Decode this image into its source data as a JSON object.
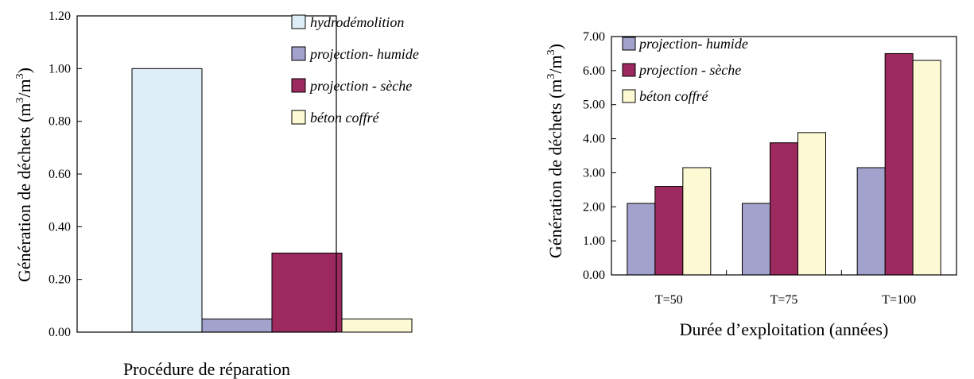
{
  "colors": {
    "hydrodemolition": "#ddeef6",
    "projection_humide": "#a3a2cc",
    "projection_seche": "#9c2a5e",
    "beton_coffre": "#fdfad3",
    "axis": "#000000"
  },
  "chart_data": [
    {
      "type": "bar",
      "title": "",
      "xlabel": "Procédure de réparation",
      "ylabel_main": "Génération de déchets (m",
      "ylabel_sup1": "3",
      "ylabel_mid": "/m",
      "ylabel_sup2": "3",
      "ylabel_end": ")",
      "ylim": [
        0,
        1.2
      ],
      "yticks": [
        "0.00",
        "0.20",
        "0.40",
        "0.60",
        "0.80",
        "1.00",
        "1.20"
      ],
      "legend_position": "top-right",
      "series": [
        {
          "name": "hydrodémolition",
          "values": [
            1.0
          ],
          "color_key": "hydrodemolition"
        },
        {
          "name": "projection- humide",
          "values": [
            0.05
          ],
          "color_key": "projection_humide"
        },
        {
          "name": "projection - sèche",
          "values": [
            0.3
          ],
          "color_key": "projection_seche"
        },
        {
          "name": "béton coffré",
          "values": [
            0.05
          ],
          "color_key": "beton_coffre"
        }
      ]
    },
    {
      "type": "bar",
      "title": "",
      "xlabel": "Durée d’exploitation (années)",
      "ylabel_main": "Génération de déchets (m",
      "ylabel_sup1": "3",
      "ylabel_mid": "/m",
      "ylabel_sup2": "3",
      "ylabel_end": ")",
      "ylim": [
        0,
        7
      ],
      "yticks": [
        "0.00",
        "1.00",
        "2.00",
        "3.00",
        "4.00",
        "5.00",
        "6.00",
        "7.00"
      ],
      "categories": [
        "T=50",
        "T=75",
        "T=100"
      ],
      "legend_position": "top-left",
      "series": [
        {
          "name": "projection- humide",
          "values": [
            2.1,
            2.1,
            3.15
          ],
          "color_key": "projection_humide"
        },
        {
          "name": "projection - sèche",
          "values": [
            2.6,
            3.88,
            6.5
          ],
          "color_key": "projection_seche"
        },
        {
          "name": "béton coffré",
          "values": [
            3.15,
            4.18,
            6.3
          ],
          "color_key": "beton_coffre"
        }
      ]
    }
  ]
}
